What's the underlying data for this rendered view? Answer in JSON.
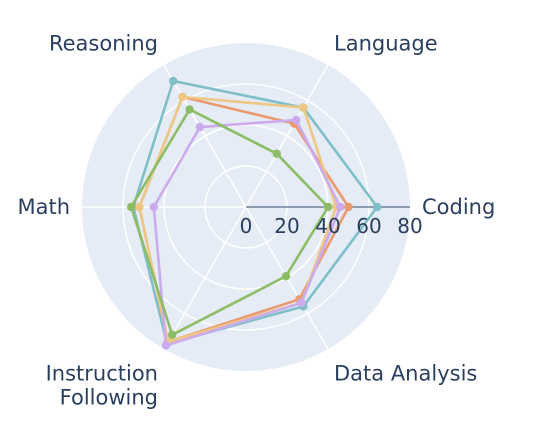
{
  "chart_data": {
    "type": "radar",
    "axes": [
      "Coding",
      "Language",
      "Reasoning",
      "Math",
      "Instruction Following",
      "Data Analysis"
    ],
    "radial_range": [
      0,
      80
    ],
    "radial_ticks": [
      "0",
      "20",
      "40",
      "60",
      "80"
    ],
    "grid": true,
    "legend": "none",
    "series": [
      {
        "color": "#7ebfc8",
        "values": [
          64,
          56,
          71,
          55,
          77,
          56
        ]
      },
      {
        "color": "#e99a70",
        "values": [
          50,
          47,
          62,
          52,
          76,
          52
        ]
      },
      {
        "color": "#efc784",
        "values": [
          44,
          56,
          62,
          52,
          76,
          54
        ]
      },
      {
        "color": "#ccaaee",
        "values": [
          46,
          49,
          45,
          45,
          78,
          54
        ]
      },
      {
        "color": "#8cbd66",
        "values": [
          40,
          30,
          55,
          56,
          72,
          39
        ]
      }
    ]
  }
}
